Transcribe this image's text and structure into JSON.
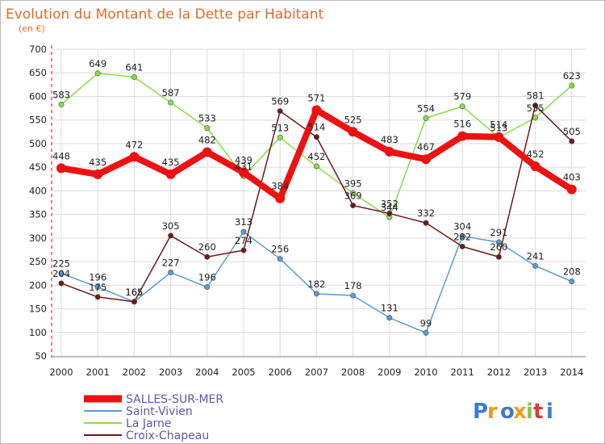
{
  "chart_data": {
    "type": "line",
    "title": "Evolution du Montant de la Dette par Habitant",
    "subtitle": "(en €)",
    "x": [
      "2000",
      "2001",
      "2002",
      "2003",
      "2004",
      "2005",
      "2006",
      "2007",
      "2008",
      "2009",
      "2010",
      "2011",
      "2012",
      "2013",
      "2014"
    ],
    "ylim": [
      50,
      700
    ],
    "yticks": [
      50,
      100,
      150,
      200,
      250,
      300,
      350,
      400,
      450,
      500,
      550,
      600,
      650,
      700
    ],
    "grid": true,
    "legend_position": "bottom-left",
    "series": [
      {
        "name": "SALLES-SUR-MER",
        "color": "#ee1111",
        "values": [
          448,
          435,
          472,
          435,
          482,
          439,
          384,
          571,
          525,
          483,
          467,
          516,
          514,
          452,
          403
        ]
      },
      {
        "name": "Saint-Vivien",
        "color": "#5b9bd5",
        "values": [
          225,
          196,
          165,
          227,
          196,
          313,
          256,
          182,
          178,
          131,
          99,
          304,
          291,
          241,
          208
        ]
      },
      {
        "name": "La Jarne",
        "color": "#88dd44",
        "values": [
          583,
          649,
          641,
          587,
          533,
          431,
          513,
          452,
          395,
          344,
          554,
          579,
          513,
          555,
          623
        ]
      },
      {
        "name": "Croix-Chapeau",
        "color": "#6b1a1a",
        "values": [
          204,
          175,
          165,
          305,
          260,
          274,
          569,
          514,
          369,
          352,
          332,
          282,
          260,
          581,
          505
        ]
      }
    ]
  },
  "logo": {
    "text": "Proxiti",
    "colors": [
      "#3a7bd5",
      "#f29a1f",
      "#3a7bd5",
      "#f29a1f",
      "#8ac43f",
      "#e03a3a",
      "#3a7bd5"
    ]
  }
}
